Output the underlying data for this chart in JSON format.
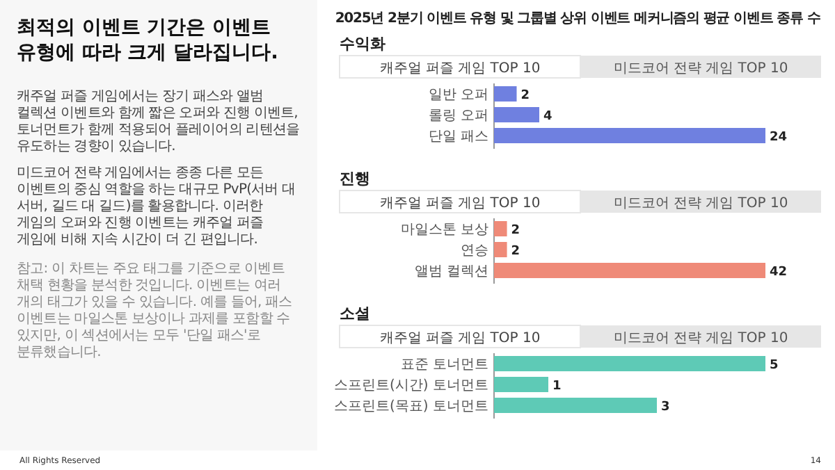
{
  "chart_data": [
    {
      "type": "other",
      "title": "최적의 이벤트 기간은 이벤트 유형에 따라 크게 달라집니다.",
      "annotations": [
        "캐주얼 퍼즐 게임에서는 장기 패스와 앨범 컬렉션 이벤트와 함께 짧은 오퍼와 진행 이벤트, 토너먼트가 함께 적용되어 플레이어의 리텐션을 유도하는 경향이 있습니다.",
        "미드코어 전략 게임에서는 종종 다른 모든 이벤트의 중심 역할을 하는 대규모 PvP(서버 대 서버, 길드 대 길드)를 활용합니다. 이러한 게임의 오퍼와 진행 이벤트는 캐주얼 퍼즐 게임에 비해 지속 시간이 더 긴 편입니다.",
        "참고: 이 차트는 주요 태그를 기준으로 이벤트 채택 현황을 분석한 것입니다. 이벤트는 여러 개의 태그가 있을 수 있습니다. 예를 들어, 패스 이벤트는 마일스톤 보상이나 과제를 포함할 수 있지만, 이 섹션에서는 모두 '단일 패스'로 분류했습니다.",
        "All Rights Reserved",
        "14"
      ]
    },
    {
      "type": "bar",
      "orientation": "horizontal",
      "title": "2025년 2분기 이벤트 유형 및 그룹별 상위 이벤트 메커니즘의 평균 이벤트 종류 수",
      "subtitle": "수익화",
      "annotations": [
        "캐주얼 퍼즐 게임 TOP 10",
        "미드코어 전략 게임 TOP 10"
      ],
      "categories": [
        "일반 오퍼",
        "롤링 오퍼",
        "단일 패스"
      ],
      "values": [
        2,
        4,
        24
      ],
      "color": "#6f80e0",
      "data_labels": true
    },
    {
      "type": "bar",
      "orientation": "horizontal",
      "subtitle": "진행",
      "annotations": [
        "캐주얼 퍼즐 게임 TOP 10",
        "미드코어 전략 게임 TOP 10"
      ],
      "categories": [
        "마일스톤 보상",
        "연승",
        "앨범 컬렉션"
      ],
      "values": [
        2,
        2,
        42
      ],
      "color": "#ef8a78",
      "data_labels": true
    },
    {
      "type": "bar",
      "orientation": "horizontal",
      "subtitle": "소셜",
      "annotations": [
        "캐주얼 퍼즐 게임 TOP 10",
        "미드코어 전략 게임 TOP 10"
      ],
      "categories": [
        "표준 토너먼트",
        "스프린트(시간) 토너먼트",
        "스프린트(목표) 토너먼트"
      ],
      "values": [
        5,
        1,
        3
      ],
      "color": "#5ecab6",
      "data_labels": true
    }
  ]
}
